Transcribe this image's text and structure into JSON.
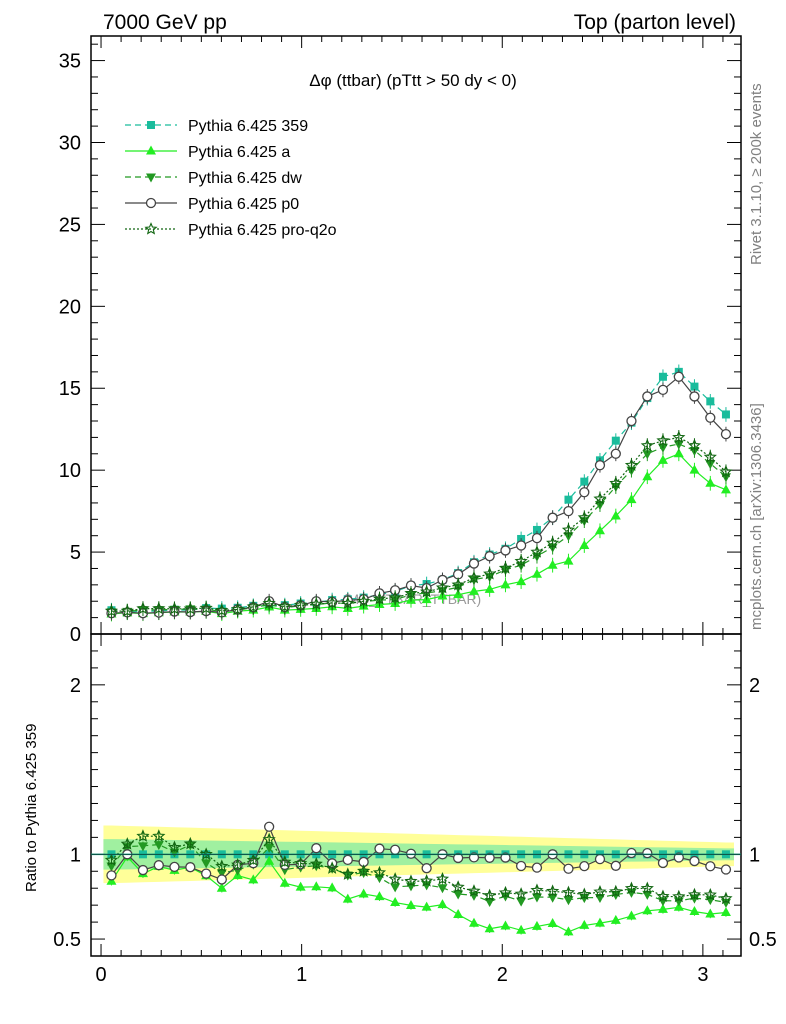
{
  "header": {
    "left": "7000 GeV pp",
    "right": "Top (parton level)"
  },
  "side_labels": {
    "rivet": "Rivet 3.1.10, ≥ 200k events",
    "mcplots": "mcplots.cern.ch [arXiv:1306.3436]"
  },
  "chart_data": {
    "type": "line",
    "title": "Δφ (ttbar) (pTtt > 50 dy < 0)",
    "watermark": "(MC_TTBAR_TTBAR)",
    "xlabel": "",
    "ylabel": "",
    "ratio_ylabel": "Ratio to Pythia 6.425 359",
    "xlim": [
      -0.05,
      3.19
    ],
    "ylim": [
      0,
      36.5
    ],
    "ratio_ylim": [
      0.4,
      2.3
    ],
    "x_ticks": [
      "0",
      "1",
      "2",
      "3"
    ],
    "y_ticks": [
      "0",
      "5",
      "10",
      "15",
      "20",
      "25",
      "30",
      "35"
    ],
    "ratio_y_ticks": [
      "0.5",
      "1",
      "2"
    ],
    "legend_position": "top-left",
    "x": [
      0.052,
      0.131,
      0.209,
      0.288,
      0.366,
      0.445,
      0.524,
      0.602,
      0.681,
      0.759,
      0.838,
      0.916,
      0.995,
      1.073,
      1.152,
      1.23,
      1.309,
      1.388,
      1.466,
      1.545,
      1.623,
      1.702,
      1.78,
      1.859,
      1.937,
      2.016,
      2.094,
      2.173,
      2.251,
      2.33,
      2.409,
      2.487,
      2.566,
      2.644,
      2.723,
      2.801,
      2.88,
      2.958,
      3.037,
      3.115
    ],
    "series": [
      {
        "name": "Pythia 6.425 359",
        "color": "#1abc9c",
        "dash": "6,4",
        "marker": "square",
        "values": [
          1.45,
          1.32,
          1.4,
          1.4,
          1.48,
          1.45,
          1.58,
          1.55,
          1.6,
          1.72,
          1.72,
          1.76,
          1.86,
          1.93,
          2.07,
          2.12,
          2.22,
          2.4,
          2.6,
          2.95,
          3.05,
          3.3,
          3.72,
          4.38,
          4.85,
          5.2,
          5.8,
          6.35,
          7.1,
          8.2,
          9.3,
          10.6,
          11.8,
          12.9,
          14.4,
          15.7,
          16.0,
          15.1,
          14.2,
          13.4
        ]
      },
      {
        "name": "Pythia 6.425 a",
        "color": "#22ee22",
        "dash": "",
        "marker": "triangle-up",
        "values": [
          1.22,
          1.3,
          1.24,
          1.3,
          1.34,
          1.34,
          1.38,
          1.24,
          1.4,
          1.46,
          1.65,
          1.46,
          1.5,
          1.56,
          1.66,
          1.56,
          1.7,
          1.8,
          1.86,
          2.06,
          2.1,
          2.32,
          2.4,
          2.6,
          2.72,
          3.0,
          3.2,
          3.65,
          4.2,
          4.45,
          5.4,
          6.3,
          7.2,
          8.2,
          9.6,
          10.6,
          11.0,
          10.0,
          9.2,
          8.8
        ]
      },
      {
        "name": "Pythia 6.425 dw",
        "color": "#229922",
        "dash": "6,4",
        "marker": "triangle-down",
        "values": [
          1.35,
          1.38,
          1.47,
          1.48,
          1.5,
          1.53,
          1.5,
          1.38,
          1.45,
          1.62,
          1.79,
          1.6,
          1.72,
          1.8,
          1.9,
          1.86,
          1.98,
          2.07,
          2.1,
          2.4,
          2.5,
          2.65,
          2.85,
          3.32,
          3.5,
          3.92,
          4.2,
          4.75,
          5.3,
          6.0,
          6.92,
          7.9,
          9.0,
          10.0,
          11.0,
          11.4,
          11.6,
          11.2,
          10.4,
          9.6
        ]
      },
      {
        "name": "Pythia 6.425 p0",
        "color": "#444444",
        "dash": "",
        "marker": "circle-open",
        "values": [
          1.27,
          1.32,
          1.27,
          1.31,
          1.37,
          1.34,
          1.4,
          1.32,
          1.5,
          1.63,
          2.0,
          1.65,
          1.75,
          2.0,
          1.96,
          2.05,
          2.12,
          2.48,
          2.67,
          2.96,
          2.8,
          3.3,
          3.64,
          4.3,
          4.75,
          5.1,
          5.4,
          5.85,
          7.1,
          7.5,
          8.65,
          10.3,
          11.0,
          13.0,
          14.5,
          14.9,
          15.7,
          14.5,
          13.2,
          12.2
        ]
      },
      {
        "name": "Pythia 6.425 pro-q2o",
        "color": "#116611",
        "dash": "2,2",
        "marker": "star-open",
        "values": [
          1.4,
          1.4,
          1.55,
          1.55,
          1.54,
          1.54,
          1.58,
          1.44,
          1.5,
          1.66,
          1.87,
          1.68,
          1.76,
          1.82,
          1.9,
          1.87,
          2.0,
          2.14,
          2.22,
          2.48,
          2.57,
          2.82,
          3.0,
          3.43,
          3.67,
          4.02,
          4.44,
          5.0,
          5.55,
          6.35,
          7.1,
          8.25,
          9.2,
          10.3,
          11.5,
          11.8,
          12.0,
          11.5,
          10.8,
          9.9
        ]
      }
    ]
  }
}
